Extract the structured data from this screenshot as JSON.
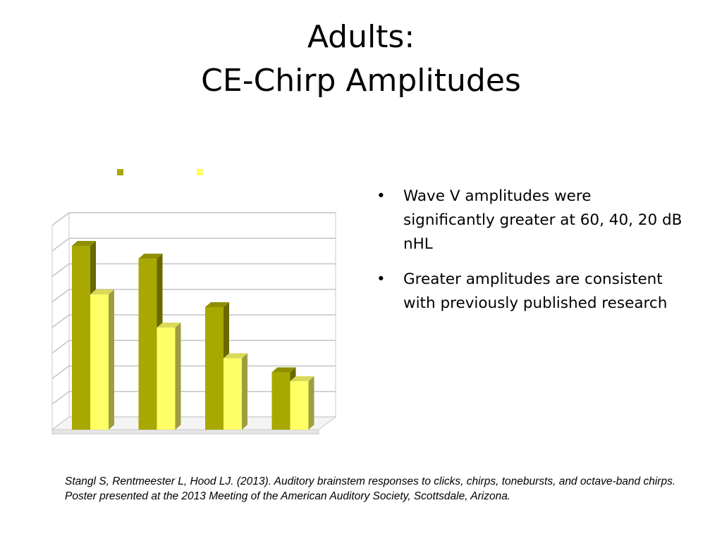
{
  "slide": {
    "title_line1": "Adults:",
    "title_line2": "CE-Chirp Amplitudes"
  },
  "bullets": [
    {
      "marker": "•",
      "text": "Wave V amplitudes were significantly greater at 60, 40, 20 dB nHL"
    },
    {
      "marker": "•",
      "text": "Greater amplitudes are consistent with previously published research"
    }
  ],
  "citation": "Stangl S, Rentmeester L, Hood LJ.  (2013).  Auditory brainstem responses to clicks, chirps, tonebursts, and octave-band chirps.  Poster presented at the 2013 Meeting of the American Auditory Society, Scottsdale, Arizona.",
  "chart_data": {
    "type": "bar",
    "style": "3d-clustered",
    "categories": [
      "",
      "",
      "",
      ""
    ],
    "series": [
      {
        "color": "#a8a800",
        "values": [
          7.2,
          6.7,
          4.8,
          2.25
        ]
      },
      {
        "color": "#ffff66",
        "values": [
          5.3,
          4.0,
          2.8,
          1.9
        ]
      }
    ],
    "ylim": [
      0,
      8
    ],
    "y_gridlines": 8,
    "grid": true,
    "legend": "top-left"
  }
}
